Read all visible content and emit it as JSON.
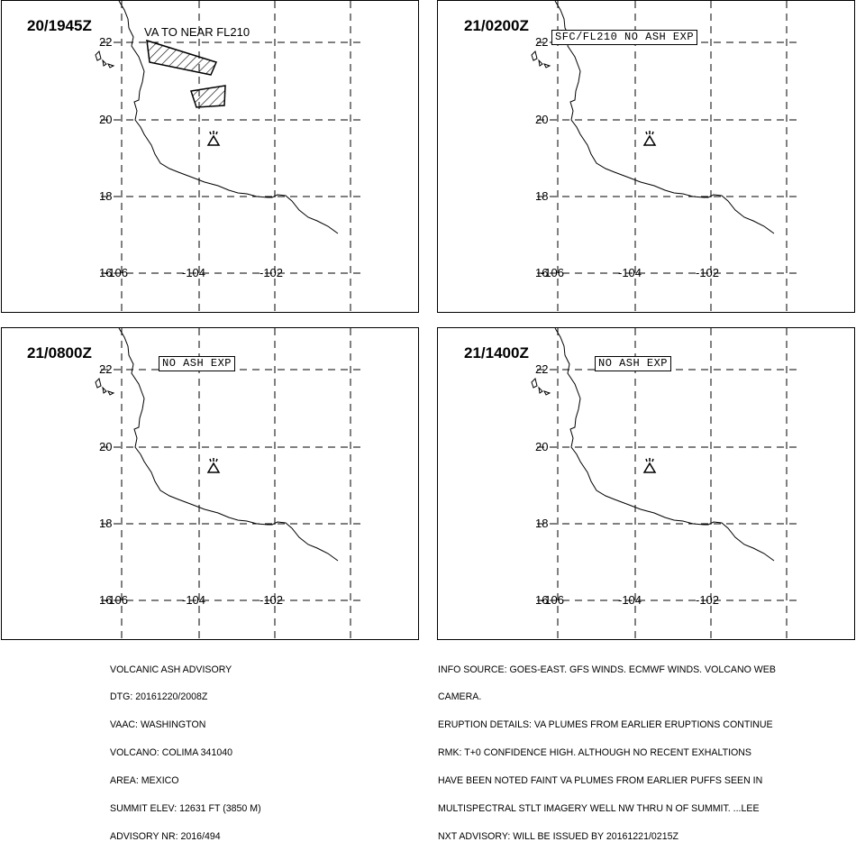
{
  "panels": [
    {
      "time": "20/1945Z",
      "label": "VA TO NEAR FL210",
      "boxed": false
    },
    {
      "time": "21/0200Z",
      "label": "SFC/FL210 NO ASH EXP",
      "boxed": true
    },
    {
      "time": "21/0800Z",
      "label": "NO ASH EXP",
      "boxed": true
    },
    {
      "time": "21/1400Z",
      "label": "NO ASH EXP",
      "boxed": true
    }
  ],
  "map": {
    "lat_ticks": [
      "22",
      "20",
      "18",
      "16"
    ],
    "lon_ticks": [
      "-106",
      "-104",
      "-102"
    ],
    "volcano_symbol": "volcano-triangle-icon",
    "ash_fill": "diagonal-hatch"
  },
  "advisory_left": [
    "VOLCANIC ASH ADVISORY",
    "DTG: 20161220/2008Z",
    "VAAC: WASHINGTON",
    "VOLCANO: COLIMA 341040",
    "AREA: MEXICO",
    "SUMMIT ELEV: 12631 FT (3850 M)",
    "ADVISORY NR: 2016/494"
  ],
  "advisory_right": [
    "INFO SOURCE: GOES-EAST. GFS WINDS. ECMWF WINDS. VOLCANO WEB",
    "CAMERA.",
    "ERUPTION DETAILS: VA PLUMES FROM EARLIER ERUPTIONS CONTINUE",
    "RMK: T+0 CONFIDENCE HIGH. ALTHOUGH NO RECENT EXHALTIONS",
    "HAVE BEEN NOTED FAINT VA PLUMES FROM EARLIER PUFFS SEEN IN",
    "MULTISPECTRAL STLT IMAGERY WELL NW THRU N OF SUMMIT. ...LEE",
    "NXT ADVISORY: WILL BE ISSUED BY 20161221/0215Z"
  ]
}
